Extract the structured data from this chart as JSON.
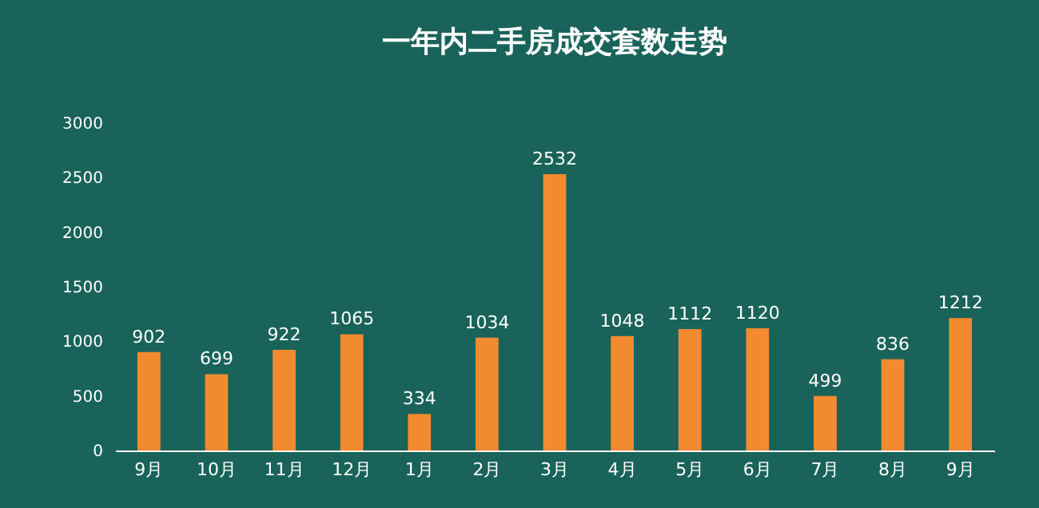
{
  "chart_data": {
    "type": "bar",
    "title": "一年内二手房成交套数走势",
    "categories": [
      "9月",
      "10月",
      "11月",
      "12月",
      "1月",
      "2月",
      "3月",
      "4月",
      "5月",
      "6月",
      "7月",
      "8月",
      "9月"
    ],
    "values": [
      902,
      699,
      922,
      1065,
      334,
      1034,
      2532,
      1048,
      1112,
      1120,
      499,
      836,
      1212
    ],
    "color": "#f28a30",
    "ylim": [
      0,
      3000
    ],
    "yticks": [
      0,
      500,
      1000,
      1500,
      2000,
      2500,
      3000
    ],
    "grid": false,
    "data_labels": true
  }
}
